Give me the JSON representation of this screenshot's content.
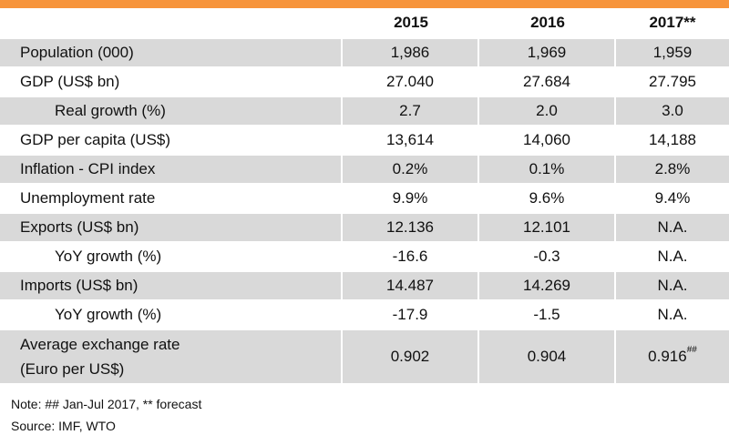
{
  "table": {
    "headers": [
      "",
      "2015",
      "2016",
      "2017**"
    ],
    "rows": [
      {
        "label": "Population (000)",
        "indent": false,
        "values": [
          "1,986",
          "1,969",
          "1,959"
        ]
      },
      {
        "label": "GDP (US$ bn)",
        "indent": false,
        "values": [
          "27.040",
          "27.684",
          "27.795"
        ]
      },
      {
        "label": "Real growth (%)",
        "indent": true,
        "values": [
          "2.7",
          "2.0",
          "3.0"
        ]
      },
      {
        "label": "GDP per capita (US$)",
        "indent": false,
        "values": [
          "13,614",
          "14,060",
          "14,188"
        ]
      },
      {
        "label": "Inflation - CPI index",
        "indent": false,
        "values": [
          "0.2%",
          "0.1%",
          "2.8%"
        ]
      },
      {
        "label": "Unemployment rate",
        "indent": false,
        "values": [
          "9.9%",
          "9.6%",
          "9.4%"
        ]
      },
      {
        "label": "Exports (US$ bn)",
        "indent": false,
        "values": [
          "12.136",
          "12.101",
          "N.A."
        ]
      },
      {
        "label": "YoY growth (%)",
        "indent": true,
        "values": [
          "-16.6",
          "-0.3",
          "N.A."
        ]
      },
      {
        "label": "Imports (US$ bn)",
        "indent": false,
        "values": [
          "14.487",
          "14.269",
          "N.A."
        ]
      },
      {
        "label": "YoY growth (%)",
        "indent": true,
        "values": [
          "-17.9",
          "-1.5",
          "N.A."
        ]
      }
    ],
    "last_row": {
      "label_line1": "Average exchange rate",
      "label_line2": "(Euro per US$)",
      "values": [
        "0.902",
        "0.904",
        "0.916"
      ],
      "last_value_mark": "##"
    }
  },
  "notes": {
    "note": "Note: ## Jan-Jul 2017, ** forecast",
    "source": "Source: IMF, WTO"
  },
  "colors": {
    "accent_bar": "#f7943b",
    "row_shade": "#d9d9d9"
  }
}
